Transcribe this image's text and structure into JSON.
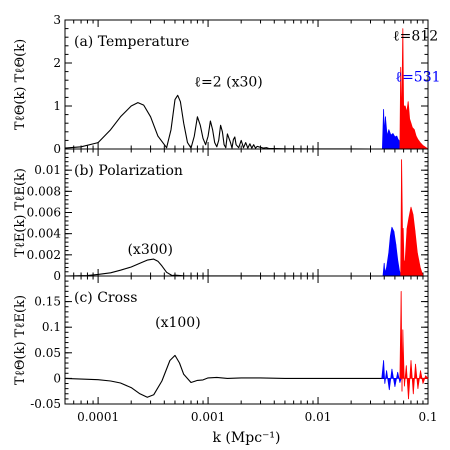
{
  "chart_data": [
    {
      "type": "line",
      "panel_label": "(a) Temperature",
      "ylabel": "TℓΘ(k) TℓΘ(k)",
      "ylim": [
        0,
        3
      ],
      "yticks": [
        0,
        1,
        2,
        3
      ],
      "annotations": [
        {
          "text": "ℓ=2 (x30)",
          "x": 0.00075,
          "y": 1.45,
          "color": "#000000"
        },
        {
          "text": "ℓ=812",
          "x": 0.048,
          "y": 2.52,
          "color": "#000000"
        },
        {
          "text": "ℓ=531",
          "x": 0.0505,
          "y": 1.57,
          "color": "#0000ff"
        }
      ],
      "series": [
        {
          "color": "#000000",
          "kind": "line",
          "x": [
            5e-05,
            7e-05,
            0.0001,
            0.00013,
            0.00016,
            0.0002,
            0.00023,
            0.00026,
            0.0003,
            0.00035,
            0.00042,
            0.00046,
            0.0005,
            0.00053,
            0.00056,
            0.0006,
            0.00065,
            0.0007,
            0.00075,
            0.0008,
            0.00085,
            0.0009,
            0.00095,
            0.001,
            0.00105,
            0.0011,
            0.00115,
            0.0012,
            0.00125,
            0.0013,
            0.00135,
            0.0014,
            0.00145,
            0.0015,
            0.0016,
            0.00165,
            0.0017,
            0.00175,
            0.0018,
            0.0019,
            0.002,
            0.0021,
            0.0022,
            0.0023,
            0.0024,
            0.0025,
            0.0026,
            0.0027,
            0.0028,
            0.003,
            0.0032,
            0.0034,
            0.0036,
            0.004,
            0.005,
            0.006,
            0.008,
            0.01,
            0.02,
            0.03,
            0.04
          ],
          "y": [
            0.02,
            0.05,
            0.15,
            0.45,
            0.75,
            1.0,
            1.08,
            1.02,
            0.75,
            0.3,
            0.03,
            0.45,
            1.15,
            1.25,
            1.1,
            0.6,
            0.15,
            0.02,
            0.3,
            0.75,
            0.55,
            0.25,
            0.1,
            0.3,
            0.65,
            0.45,
            0.15,
            0.05,
            0.2,
            0.55,
            0.4,
            0.1,
            0.03,
            0.35,
            0.15,
            0.02,
            0.22,
            0.28,
            0.1,
            0.03,
            0.2,
            0.03,
            0.15,
            0.02,
            0.12,
            0.02,
            0.1,
            0.02,
            0.06,
            0.04,
            0.02,
            0.03,
            0.01,
            0.01,
            0.005,
            0.005,
            0.003,
            0.002,
            0.002,
            0.001,
            0.001
          ]
        },
        {
          "color": "#0000ff",
          "kind": "spiky",
          "x": [
            0.0385,
            0.0395,
            0.04,
            0.041,
            0.0425,
            0.044,
            0.046,
            0.048,
            0.05,
            0.052,
            0.0535,
            0.0545,
            0.055,
            0.056,
            0.0565
          ],
          "y": [
            0.0,
            0.92,
            0.35,
            0.75,
            0.3,
            0.45,
            0.32,
            0.36,
            0.28,
            0.3,
            0.22,
            0.2,
            0.15,
            0.08,
            0.0
          ]
        },
        {
          "color": "#ff0000",
          "kind": "spiky",
          "x": [
            0.0555,
            0.0565,
            0.0575,
            0.059,
            0.06,
            0.062,
            0.064,
            0.066,
            0.068,
            0.07,
            0.072,
            0.075,
            0.078,
            0.081,
            0.085,
            0.09,
            0.095,
            0.1
          ],
          "y": [
            0.0,
            1.9,
            0.5,
            2.8,
            1.0,
            1.0,
            0.85,
            1.1,
            0.7,
            0.6,
            0.5,
            0.45,
            0.3,
            0.22,
            0.15,
            0.08,
            0.04,
            0.0
          ]
        }
      ]
    },
    {
      "type": "line",
      "panel_label": "(b) Polarization",
      "ylabel": "TℓE(k) TℓE(k)",
      "ylim": [
        0,
        0.012
      ],
      "yticks": [
        0,
        0.002,
        0.004,
        0.006,
        0.008,
        0.01
      ],
      "annotations": [
        {
          "text": "(x300)",
          "x": 0.000185,
          "y": 0.0021,
          "color": "#000000"
        }
      ],
      "series": [
        {
          "color": "#000000",
          "kind": "line",
          "x": [
            5e-05,
            8e-05,
            0.0001,
            0.00013,
            0.00016,
            0.0002,
            0.00024,
            0.00028,
            0.00032,
            0.00035,
            0.00038,
            0.00042,
            0.00047,
            0.0005,
            0.0006,
            0.001,
            0.01,
            0.04
          ],
          "y": [
            0.0,
            5e-05,
            0.00015,
            0.0003,
            0.00055,
            0.00085,
            0.0012,
            0.0015,
            0.0016,
            0.0014,
            0.00095,
            0.00035,
            5e-05,
            8e-05,
            2e-05,
            1e-05,
            0.0,
            0.0
          ]
        },
        {
          "color": "#0000ff",
          "kind": "spiky",
          "x": [
            0.039,
            0.04,
            0.0405,
            0.042,
            0.044,
            0.0455,
            0.047,
            0.049,
            0.051,
            0.053,
            0.055,
            0.057
          ],
          "y": [
            0.0,
            0.0012,
            0.0003,
            0.0008,
            0.0022,
            0.0038,
            0.0046,
            0.0042,
            0.003,
            0.0015,
            0.0005,
            0.0
          ]
        },
        {
          "color": "#ff0000",
          "kind": "spiky",
          "x": [
            0.0565,
            0.0575,
            0.059,
            0.0595,
            0.0605,
            0.062,
            0.0645,
            0.067,
            0.07,
            0.073,
            0.076,
            0.08,
            0.085,
            0.09
          ],
          "y": [
            0.0,
            0.011,
            0.0018,
            0.0045,
            0.0012,
            0.0015,
            0.0045,
            0.0055,
            0.0065,
            0.0058,
            0.0043,
            0.0022,
            0.0008,
            0.0
          ]
        }
      ]
    },
    {
      "type": "line",
      "panel_label": "(c) Cross",
      "ylabel": "TℓΘ(k) TℓE(k)",
      "ylim": [
        -0.05,
        0.2
      ],
      "yticks": [
        -0.05,
        0,
        0.05,
        0.1,
        0.15
      ],
      "annotations": [
        {
          "text": "(x100)",
          "x": 0.00033,
          "y": 0.1,
          "color": "#000000"
        }
      ],
      "series": [
        {
          "color": "#000000",
          "kind": "line",
          "x": [
            5e-05,
            0.0001,
            0.00013,
            0.00016,
            0.0002,
            0.00024,
            0.00028,
            0.00032,
            0.00038,
            0.00045,
            0.0005,
            0.00055,
            0.0006,
            0.0007,
            0.0008,
            0.0009,
            0.001,
            0.0012,
            0.0015,
            0.002,
            0.003,
            0.005,
            0.01,
            0.02,
            0.04
          ],
          "y": [
            0.0,
            -0.0025,
            -0.005,
            -0.009,
            -0.018,
            -0.03,
            -0.037,
            -0.032,
            -0.005,
            0.035,
            0.045,
            0.03,
            0.008,
            -0.008,
            -0.004,
            -0.003,
            0.001,
            0.002,
            0.0,
            0.001,
            0.001,
            0.0,
            0.0,
            0.0,
            0.0
          ]
        },
        {
          "color": "#0000ff",
          "kind": "spiky",
          "x": [
            0.038,
            0.0395,
            0.0405,
            0.042,
            0.0445,
            0.047,
            0.05,
            0.053,
            0.0555,
            0.057
          ],
          "y": [
            0.0,
            0.035,
            -0.01,
            0.015,
            -0.022,
            0.018,
            -0.016,
            0.012,
            -0.008,
            0.0
          ]
        },
        {
          "color": "#ff0000",
          "kind": "spiky",
          "x": [
            0.0555,
            0.057,
            0.058,
            0.059,
            0.061,
            0.0635,
            0.0665,
            0.07,
            0.0735,
            0.077,
            0.081,
            0.0855,
            0.09,
            0.095,
            0.1
          ],
          "y": [
            0.0,
            0.17,
            -0.025,
            0.095,
            -0.015,
            0.025,
            -0.04,
            0.035,
            -0.03,
            0.028,
            -0.02,
            0.015,
            -0.01,
            0.005,
            0.0
          ]
        }
      ]
    }
  ],
  "x_axis": {
    "label": "k (Mpc⁻¹)",
    "scale": "log",
    "xlim": [
      5e-05,
      0.1
    ],
    "ticks": [
      0.0001,
      0.001,
      0.01,
      0.1
    ],
    "tick_labels": [
      "0.0001",
      "0.001",
      "0.01",
      "0.1"
    ]
  }
}
